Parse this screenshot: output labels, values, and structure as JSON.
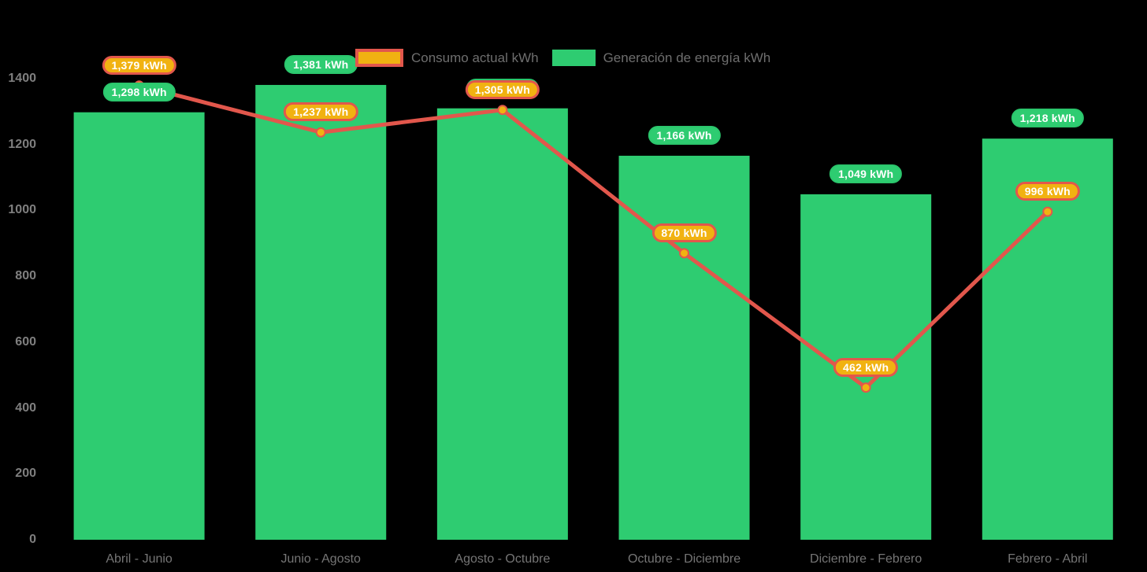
{
  "chart_data": {
    "type": "combo (bar + line)",
    "categories": [
      "Abril - Junio",
      "Junio - Agosto",
      "Agosto - Octubre",
      "Octubre - Diciembre",
      "Diciembre - Febrero",
      "Febrero - Abril"
    ],
    "series": [
      {
        "name": "Generación de energía kWh",
        "kind": "bar",
        "color": "#2ECC71",
        "values": [
          1298,
          1381,
          1310,
          1166,
          1049,
          1218
        ],
        "labels": [
          "1,298 kWh",
          "1,381 kWh",
          "1,310 kWh",
          "1,166 kWh",
          "1,049 kWh",
          "1,218 kWh"
        ],
        "label_visible": [
          true,
          true,
          false,
          true,
          true,
          true
        ]
      },
      {
        "name": "Consumo actual kWh",
        "kind": "line",
        "color": "#E2574C",
        "marker_color": "#F1B211",
        "values": [
          1379,
          1237,
          1305,
          870,
          462,
          996
        ],
        "labels": [
          "1,379 kWh",
          "1,237 kWh",
          "1,305 kWh",
          "870 kWh",
          "462 kWh",
          "996 kWh"
        ]
      }
    ],
    "title": "",
    "xlabel": "",
    "ylabel": "",
    "ylim": [
      0,
      1400
    ],
    "yticks": [
      0,
      200,
      400,
      600,
      800,
      1000,
      1200,
      1400
    ],
    "grid": false,
    "legend_position": "top",
    "background": "#000000"
  },
  "colors": {
    "bar_green": "#2ECC71",
    "line_red": "#E2574C",
    "marker_gold": "#F1B211",
    "pill_text": "#ffffff",
    "axis_text": "#7f7f7f",
    "legend_text": "#6e6e6e"
  }
}
